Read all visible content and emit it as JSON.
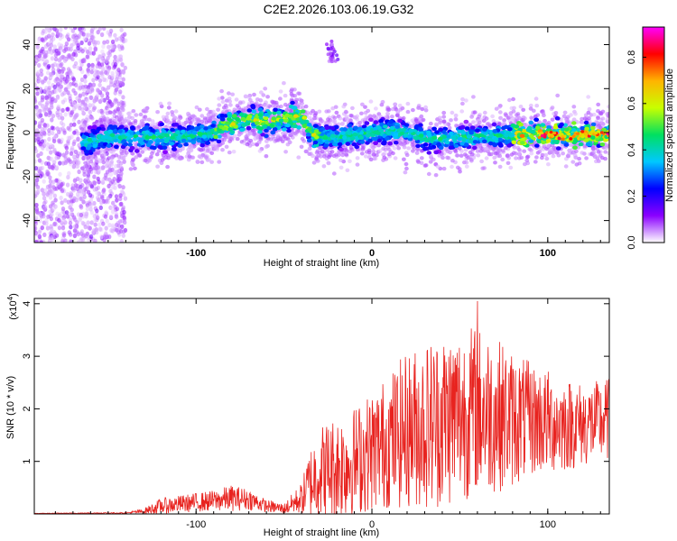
{
  "title": "C2E2.2026.103.06.19.G32",
  "colors": {
    "snr_line": "#e8231f",
    "frame": "#000000"
  },
  "chart_data": [
    {
      "type": "heatmap",
      "name": "spectrogram",
      "xlabel": "Height of straight line (km)",
      "ylabel": "Frequency (Hz)",
      "xlim": [
        -192,
        135
      ],
      "ylim": [
        -50,
        48
      ],
      "xticks": [
        "-100",
        "0",
        "100"
      ],
      "xtick_values": [
        -100,
        0,
        100
      ],
      "yticks": [
        "40",
        "20",
        "0",
        "-20",
        "-40"
      ],
      "ytick_values": [
        40,
        20,
        0,
        -20,
        -40
      ],
      "ridge": {
        "description": "frequency of peak amplitude vs height",
        "x": [
          -192,
          -160,
          -150,
          -130,
          -110,
          -90,
          -80,
          -70,
          -60,
          -50,
          -40,
          -35,
          -30,
          -20,
          -10,
          0,
          10,
          20,
          30,
          40,
          50,
          60,
          80,
          100,
          120,
          135
        ],
        "y": [
          -4,
          -4,
          -2,
          -2,
          -2,
          0,
          4,
          6,
          5,
          6,
          8,
          0,
          -2,
          -2,
          -1,
          0,
          1,
          0,
          -2,
          -3,
          -2,
          -2,
          -1,
          -1,
          -1,
          -1
        ]
      },
      "isolated_blob": {
        "x": -23,
        "y": 36
      },
      "colorbar": {
        "label": "Normalized spectral amplitude",
        "range": [
          0,
          0.93
        ],
        "ticks": [
          "0.0",
          "0.2",
          "0.4",
          "0.6",
          "0.8"
        ],
        "tick_values": [
          0,
          0.2,
          0.4,
          0.6,
          0.8
        ],
        "colormap": [
          "#ffffff",
          "#8a00ff",
          "#0000ff",
          "#00c8ff",
          "#00e060",
          "#c8ff00",
          "#ffb400",
          "#ff0000",
          "#ff00ff"
        ]
      }
    },
    {
      "type": "line",
      "name": "snr",
      "xlabel": "Height of straight line (km)",
      "ylabel": "SNR (10 * v/v)",
      "multiplier_label": "(x10",
      "multiplier_exponent": "4",
      "xlim": [
        -192,
        135
      ],
      "ylim": [
        0,
        4.1
      ],
      "xticks": [
        "-100",
        "0",
        "100"
      ],
      "xtick_values": [
        -100,
        0,
        100
      ],
      "yticks": [
        "1",
        "2",
        "3",
        "4"
      ],
      "ytick_values": [
        1,
        2,
        3,
        4
      ],
      "envelope": {
        "description": "approximate mean and spread of SNR (x10^4) vs height",
        "x": [
          -192,
          -140,
          -130,
          -120,
          -100,
          -90,
          -80,
          -70,
          -60,
          -50,
          -40,
          -35,
          -30,
          -20,
          -10,
          0,
          10,
          20,
          30,
          40,
          50,
          60,
          70,
          80,
          90,
          100,
          110,
          120,
          130,
          135
        ],
        "mean": [
          0.01,
          0.02,
          0.05,
          0.15,
          0.22,
          0.25,
          0.3,
          0.28,
          0.15,
          0.1,
          0.3,
          0.6,
          0.8,
          0.9,
          1.0,
          1.2,
          1.4,
          1.6,
          1.7,
          1.8,
          1.9,
          2.0,
          1.9,
          1.8,
          1.8,
          1.75,
          1.7,
          1.7,
          1.75,
          1.8
        ],
        "spread": [
          0.005,
          0.01,
          0.05,
          0.15,
          0.18,
          0.2,
          0.25,
          0.2,
          0.12,
          0.1,
          0.3,
          0.7,
          0.9,
          1.0,
          1.05,
          1.15,
          1.3,
          1.5,
          1.6,
          1.7,
          1.7,
          1.6,
          1.5,
          1.3,
          1.1,
          1.0,
          0.9,
          0.8,
          0.8,
          0.8
        ]
      },
      "peak": {
        "x": 60,
        "y": 4.05
      }
    }
  ]
}
